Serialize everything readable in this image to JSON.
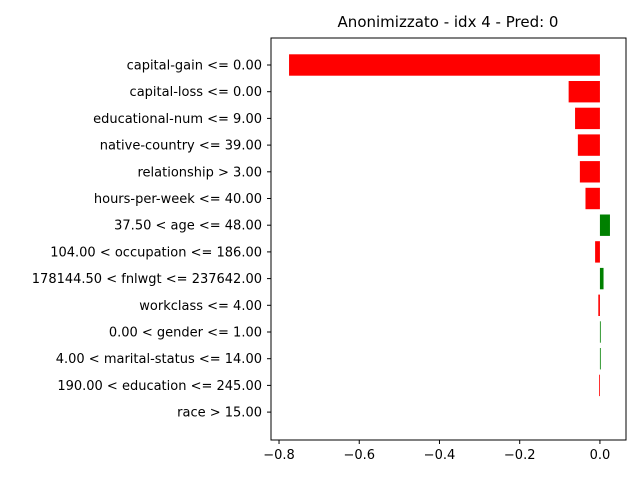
{
  "chart_data": {
    "type": "bar",
    "orientation": "horizontal",
    "title": "Anonimizzato - idx 4 - Pred: 0",
    "xlabel": "",
    "ylabel": "",
    "xlim": [
      -0.82,
      0.065
    ],
    "xticks": [
      -0.8,
      -0.6,
      -0.4,
      -0.2,
      0.0
    ],
    "xtick_labels": [
      "−0.8",
      "−0.6",
      "−0.4",
      "−0.2",
      "0.0"
    ],
    "grid": false,
    "colors": {
      "negative": "#ff0000",
      "positive": "#008000"
    },
    "categories": [
      "capital-gain <= 0.00",
      "capital-loss <= 0.00",
      "educational-num <= 9.00",
      "native-country <= 39.00",
      "relationship > 3.00",
      "hours-per-week <= 40.00",
      "37.50 < age <= 48.00",
      "104.00 < occupation <= 186.00",
      "178144.50 < fnlwgt <= 237642.00",
      "workclass <= 4.00",
      "0.00 < gender <= 1.00",
      "4.00 < marital-status <= 14.00",
      "190.00 < education <= 245.00",
      "race > 15.00"
    ],
    "values": [
      -0.775,
      -0.078,
      -0.062,
      -0.055,
      -0.05,
      -0.036,
      0.025,
      -0.012,
      0.009,
      -0.004,
      0.002,
      0.002,
      -0.002,
      0.0
    ]
  }
}
